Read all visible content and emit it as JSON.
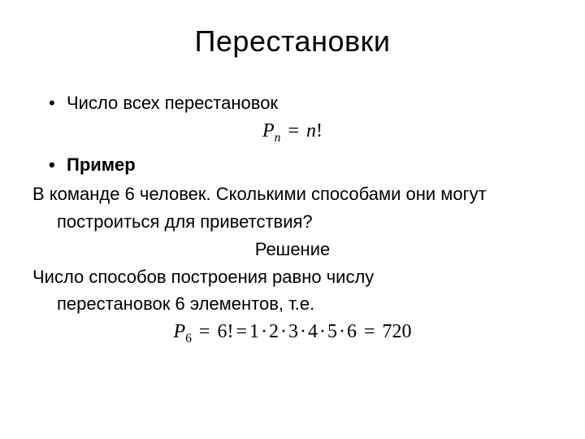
{
  "slide": {
    "title": "Перестановки",
    "bullet1": "Число всех перестановок",
    "formula1": {
      "lhs_symbol": "P",
      "lhs_sub": "n",
      "eq": "=",
      "rhs_symbol": "n",
      "rhs_fact": "!",
      "fontsize": 24,
      "font": "Times New Roman italic",
      "color": "#000000"
    },
    "bullet2": "Пример",
    "problem_line1": "В команде 6 человек. Сколькими способами они могут",
    "problem_line2": "построиться для приветствия?",
    "solution_label": "Решение",
    "answer_line1": "Число способов построения равно числу",
    "answer_line2": "перестановок 6 элементов, т.е.",
    "formula2": {
      "lhs_symbol": "P",
      "lhs_sub": "6",
      "eq1": "=",
      "fact": "6!",
      "eq2": "=",
      "factors": [
        "1",
        "2",
        "3",
        "4",
        "5",
        "6"
      ],
      "eq3": "=",
      "result": "720",
      "fontsize": 24,
      "font": "Times New Roman italic",
      "color": "#000000"
    },
    "background_color": "#ffffff",
    "text_color": "#000000",
    "body_fontsize": 22,
    "title_fontsize": 36
  }
}
